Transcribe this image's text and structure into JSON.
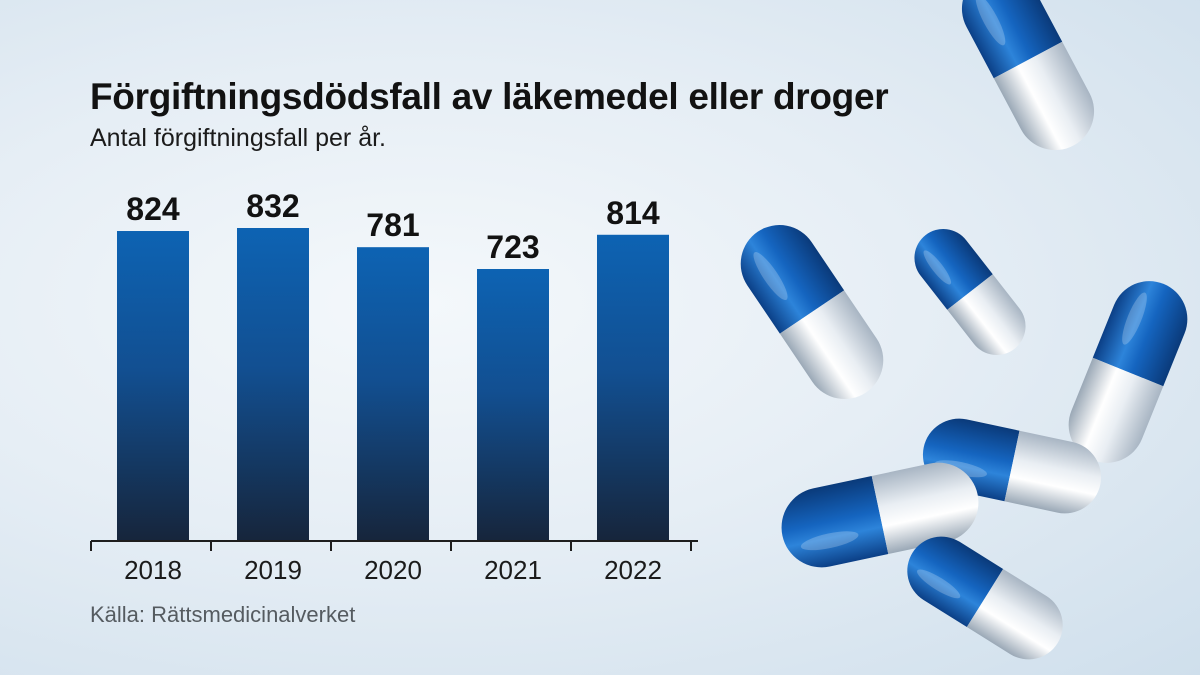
{
  "title": "Förgiftningsdödsfall av läkemedel eller droger",
  "subtitle": "Antal förgiftningsfall per år.",
  "source": "Källa: Rättsmedicinalverket",
  "colors": {
    "bar_top": "#0d63b3",
    "bar_bottom": "#16253b",
    "capsule_blue": "#1565c0",
    "capsule_white": "#eef2f6"
  },
  "icons": [
    "capsule-pill-icon"
  ],
  "chart_data": {
    "type": "bar",
    "categories": [
      "2018",
      "2019",
      "2020",
      "2021",
      "2022"
    ],
    "values": [
      824,
      832,
      781,
      723,
      814
    ],
    "title": "Förgiftningsdödsfall av läkemedel eller droger",
    "subtitle": "Antal förgiftningsfall per år.",
    "xlabel": "",
    "ylabel": "",
    "ylim": [
      0,
      832
    ],
    "grid": false,
    "legend": "none",
    "data_labels": true
  }
}
